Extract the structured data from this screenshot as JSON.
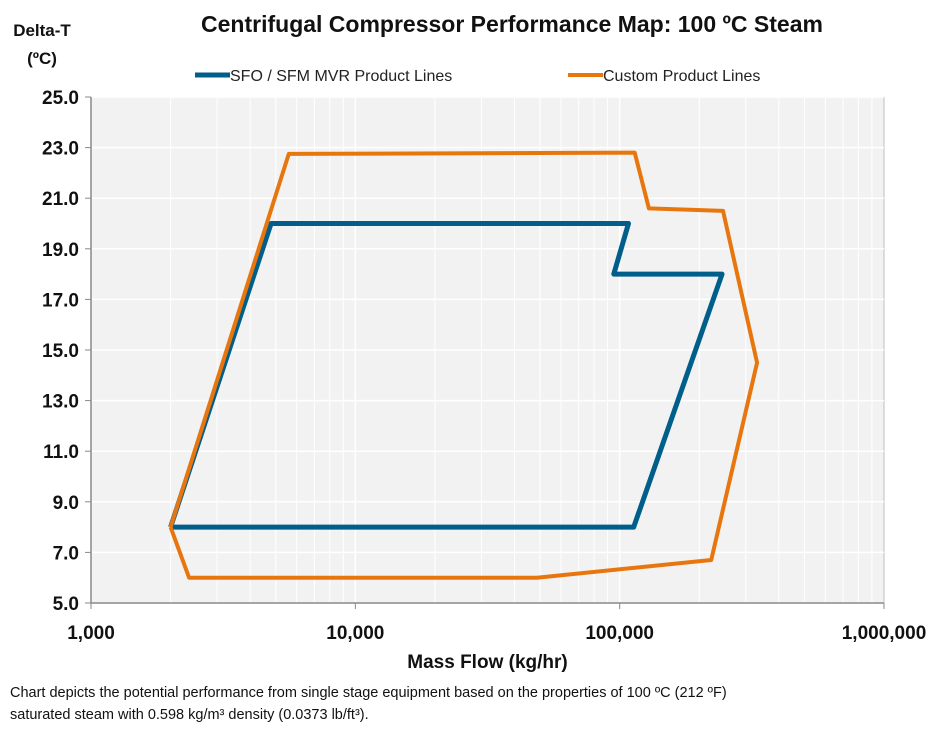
{
  "chart_data": {
    "type": "line",
    "title": "Centrifugal Compressor Performance Map:  100 ºC Steam",
    "xlabel": "Mass Flow (kg/hr)",
    "ylabel": "Delta-T (ºC)",
    "xscale": "log",
    "xlim": [
      1000,
      1000000
    ],
    "ylim": [
      5.0,
      25.0
    ],
    "xticks": [
      "1,000",
      "10,000",
      "100,000",
      "1,000,000"
    ],
    "yticks": [
      "5.0",
      "7.0",
      "9.0",
      "11.0",
      "13.0",
      "15.0",
      "17.0",
      "19.0",
      "21.0",
      "23.0",
      "25.0"
    ],
    "grid": true,
    "legend_position": "top",
    "series": [
      {
        "name": "SFO / SFM MVR Product Lines",
        "color": "#005f8a",
        "x": [
          2000,
          4800,
          108000,
          95000,
          244000,
          113000,
          2000
        ],
        "y": [
          8.0,
          20.0,
          20.0,
          18.0,
          18.0,
          8.0,
          8.0
        ]
      },
      {
        "name": "Custom Product Lines",
        "color": "#e8760f",
        "x": [
          2000,
          2350,
          48600,
          222000,
          331000,
          246000,
          129000,
          114000,
          5600,
          2000
        ],
        "y": [
          8.0,
          6.0,
          6.0,
          6.7,
          14.5,
          20.5,
          20.6,
          22.8,
          22.75,
          8.0
        ]
      }
    ]
  },
  "caption": {
    "line1": "Chart depicts the potential performance from single stage equipment based on the properties of 100 ºC (212 ºF)",
    "line2": "saturated steam with 0.598 kg/m³ density (0.0373 lb/ft³)."
  }
}
